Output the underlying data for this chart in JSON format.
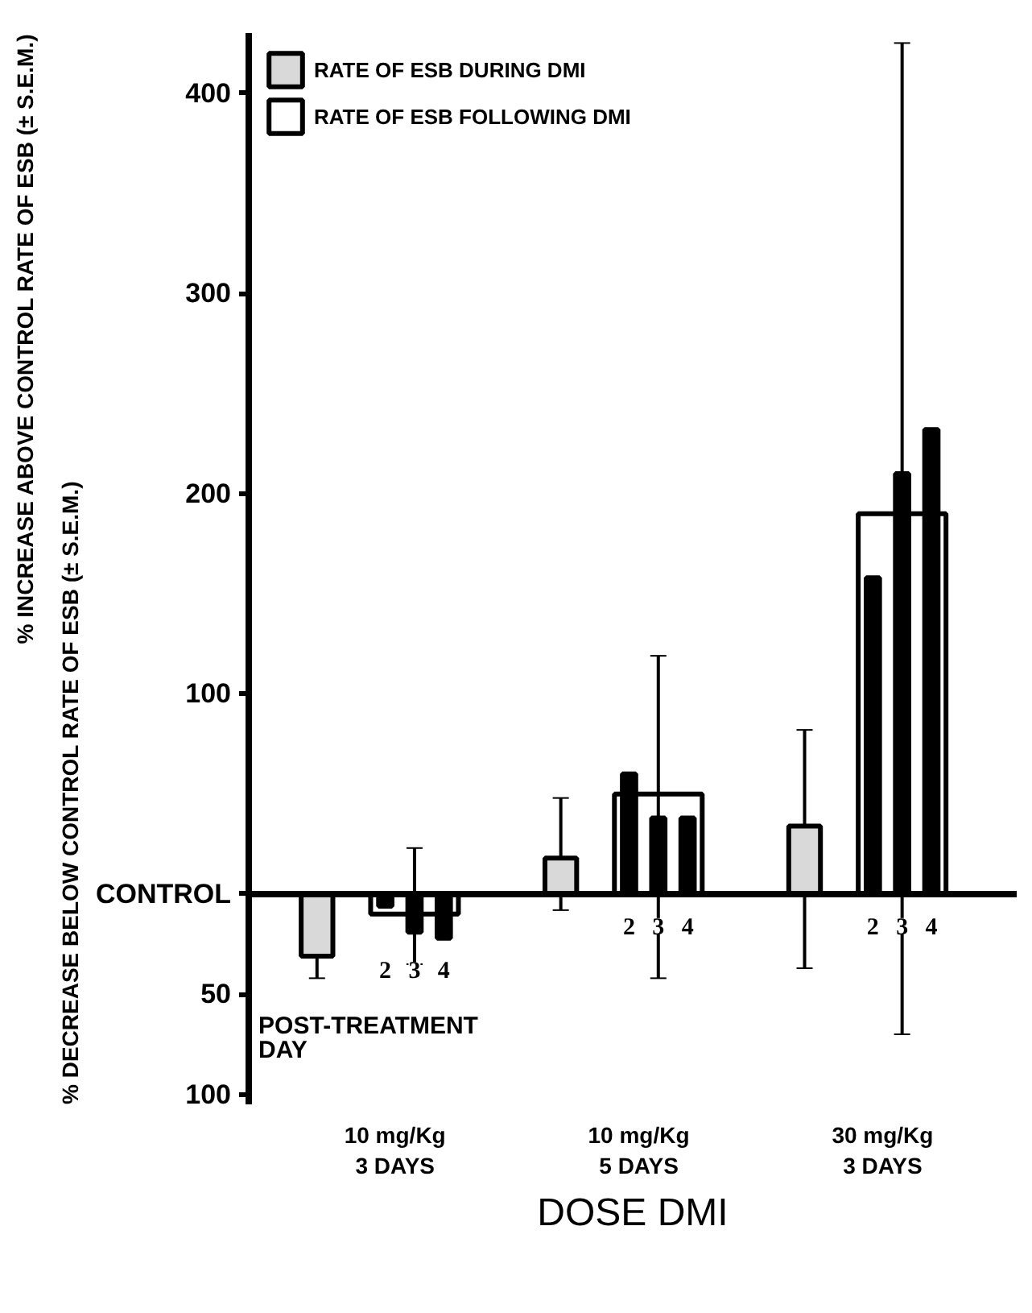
{
  "chart_data": {
    "type": "bar",
    "xlabel": "DOSE DMI",
    "ylabel": "% INCREASE ABOVE CONTROL RATE OF ESB (± S.E.M.)",
    "categories": [
      "10 mg/Kg\n3 DAYS",
      "10 mg/Kg\n5 DAYS",
      "30 mg/Kg\n3 DAYS"
    ],
    "series": [
      {
        "name": "RATE OF ESB DURING DMI",
        "color": "#d9d9d9",
        "values": [
          -31,
          18,
          34
        ],
        "errors": [
          [
            -42,
            -31
          ],
          [
            -8,
            48
          ],
          [
            -37,
            82
          ]
        ]
      },
      {
        "name": "RATE OF ESB FOLLOWING DMI",
        "color": "#000000",
        "values": [
          -10,
          50,
          190
        ],
        "errors": [
          [
            -35,
            23
          ],
          [
            -42,
            119
          ],
          [
            -70,
            425
          ]
        ]
      },
      {
        "name": "2",
        "color": "#000000",
        "values": [
          -6,
          60,
          158
        ]
      },
      {
        "name": "3",
        "color": "#000000",
        "values": [
          -19,
          38,
          210
        ]
      },
      {
        "name": "4",
        "color": "#000000",
        "values": [
          -22,
          38,
          232
        ]
      }
    ],
    "annotations": [
      "POST-TREATMENT",
      "DAY",
      "% DECREASE BELOW CONTROL RATE OF ESB (± S.E.M.)"
    ],
    "ylim": [
      -105,
      430
    ],
    "yticks": [
      {
        "value": -100,
        "label": "100"
      },
      {
        "value": -50,
        "label": "50"
      },
      {
        "value": 0,
        "label": "CONTROL"
      },
      100,
      200,
      300,
      400
    ],
    "ref_lines": [
      {
        "axis": "y",
        "value": 0,
        "color": "#000000"
      }
    ],
    "legend": "top left",
    "grid": false
  }
}
